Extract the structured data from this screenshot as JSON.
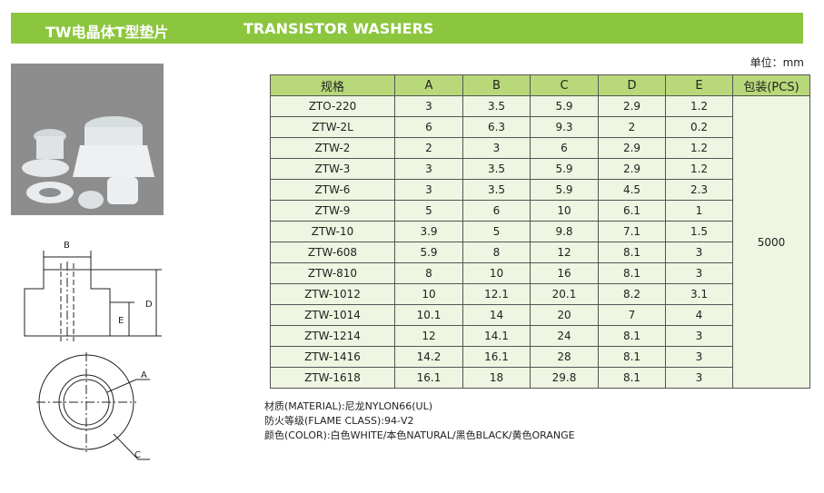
{
  "header": {
    "title_cn": "TW电晶体T型垫片",
    "title_en": "TRANSISTOR WASHERS"
  },
  "unit": "单位：mm",
  "table": {
    "columns": [
      "规格",
      "A",
      "B",
      "C",
      "D",
      "E",
      "包装(PCS)"
    ],
    "rows": [
      [
        "ZTO-220",
        3,
        3.5,
        5.9,
        2.9,
        1.2
      ],
      [
        "ZTW-2L",
        6,
        6.3,
        9.3,
        2,
        0.2
      ],
      [
        "ZTW-2",
        2,
        3,
        6,
        2.9,
        1.2
      ],
      [
        "ZTW-3",
        3,
        3.5,
        5.9,
        2.9,
        1.2
      ],
      [
        "ZTW-6",
        3,
        3.5,
        5.9,
        4.5,
        2.3
      ],
      [
        "ZTW-9",
        5,
        6,
        10,
        6.1,
        1
      ],
      [
        "ZTW-10",
        3.9,
        5,
        9.8,
        7.1,
        1.5
      ],
      [
        "ZTW-608",
        5.9,
        8,
        12,
        8.1,
        3
      ],
      [
        "ZTW-810",
        8,
        10,
        16,
        8.1,
        3
      ],
      [
        "ZTW-1012",
        10,
        12.1,
        20.1,
        8.2,
        3.1
      ],
      [
        "ZTW-1014",
        10.1,
        14,
        20,
        7,
        4
      ],
      [
        "ZTW-1214",
        12,
        14.1,
        24,
        8.1,
        3
      ],
      [
        "ZTW-1416",
        14.2,
        16.1,
        28,
        8.1,
        3
      ],
      [
        "ZTW-1618",
        16.1,
        18,
        29.8,
        8.1,
        3
      ]
    ],
    "packing": 5000
  },
  "drawing": {
    "labels": [
      "B",
      "D",
      "E",
      "A",
      "C"
    ]
  },
  "notes": [
    "材质(MATERIAL):尼龙NYLON66(UL)",
    "防火等级(FLAME CLASS):94-V2",
    "颜色(COLOR):白色WHITE/本色NATURAL/黑色BLACK/黄色ORANGE"
  ]
}
